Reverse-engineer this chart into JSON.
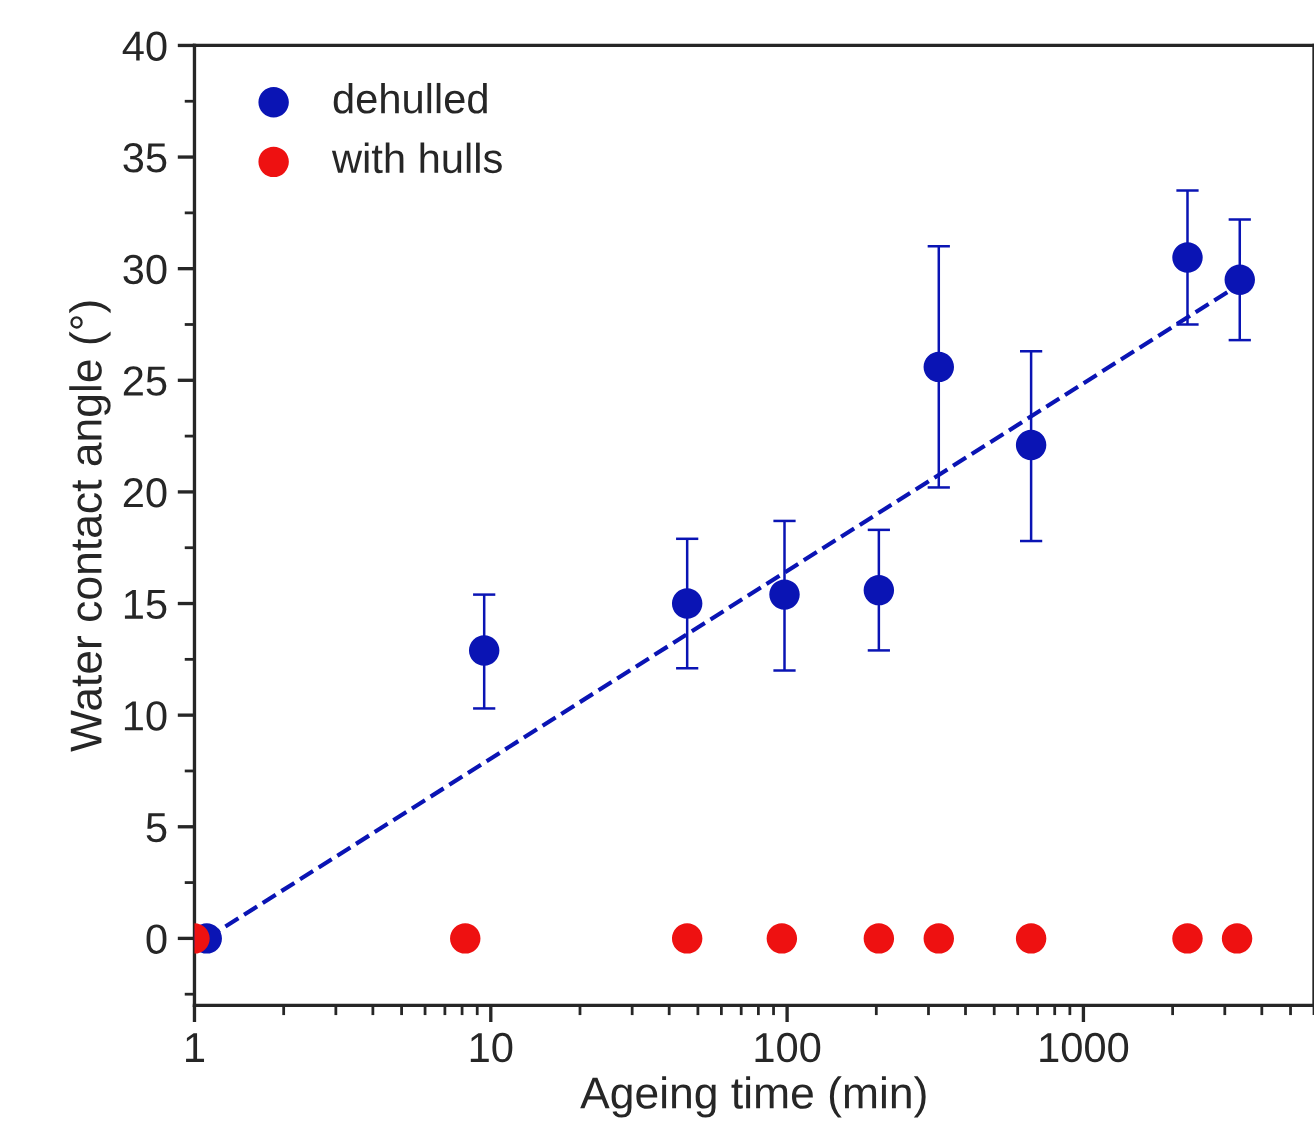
{
  "chart_data": {
    "type": "scatter",
    "xlabel": "Ageing time (min)",
    "ylabel": "Water contact angle (°)",
    "log": "x",
    "xlim": [
      1,
      6000
    ],
    "xticks": [
      1,
      10,
      100,
      1000
    ],
    "ylim": [
      -3,
      40
    ],
    "yticks": [
      0,
      5,
      10,
      15,
      20,
      25,
      30,
      35,
      40
    ],
    "grid": false,
    "legend": "top left",
    "series": [
      {
        "name": "dehulled",
        "marker": "circle",
        "color": "#0a14b4",
        "x": [
          1.1,
          9.5,
          46,
          98,
          204,
          325,
          666,
          2245,
          3370
        ],
        "values": [
          0,
          12.9,
          15.0,
          15.4,
          15.6,
          25.6,
          22.1,
          30.5,
          29.5
        ],
        "errors": [
          null,
          [
            10.3,
            15.4
          ],
          [
            12.1,
            17.9
          ],
          [
            12.0,
            18.7
          ],
          [
            12.9,
            18.3
          ],
          [
            20.2,
            31.0
          ],
          [
            17.8,
            26.3
          ],
          [
            27.5,
            33.5
          ],
          [
            26.8,
            32.2
          ]
        ]
      },
      {
        "name": "with hulls",
        "marker": "circle",
        "color": "#ee1111",
        "x": [
          1.0,
          8.2,
          46,
          96,
          204,
          325,
          666,
          2245,
          3300
        ],
        "values": [
          0,
          0,
          0,
          0,
          0,
          0,
          0,
          0,
          0
        ]
      },
      {
        "type": "line",
        "line_style": "dashed",
        "color": "#0a14b4",
        "x": [
          1.1,
          3370
        ],
        "values": [
          0,
          29.3
        ]
      }
    ]
  }
}
